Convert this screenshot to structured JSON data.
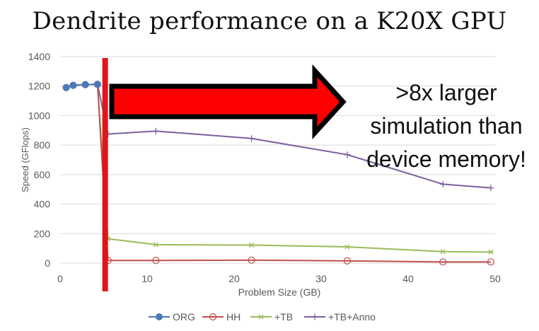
{
  "slide": {
    "title": "Dendrite performance on a K20X GPU",
    "annotation": [
      ">8x larger",
      "simulation than",
      "device memory!"
    ]
  },
  "colors": {
    "ORG": "#4a7ab8",
    "HH": "#c0504d",
    "TB": "#9bbb59",
    "TBAnno": "#7b5fa0",
    "marker_line": "#e0151a",
    "arrow_fill": "#ff0000",
    "arrow_outline": "#000000"
  },
  "chart_data": {
    "type": "line",
    "xlabel": "Problem Size (GB)",
    "ylabel": "Speed (GFlops)",
    "xlim": [
      0,
      50
    ],
    "ylim": [
      0,
      1400
    ],
    "xticks": [
      0,
      10,
      20,
      30,
      40,
      50
    ],
    "yticks": [
      0,
      200,
      400,
      600,
      800,
      1000,
      1200,
      1400
    ],
    "grid": "horizontal",
    "legend_position": "bottom",
    "series": [
      {
        "name": "ORG",
        "marker": "filled-circle",
        "x": [
          0.7,
          1.5,
          2.9,
          4.3
        ],
        "y": [
          1190,
          1205,
          1210,
          1212
        ]
      },
      {
        "name": "HH",
        "marker": "open-circle",
        "x": [
          0.7,
          1.5,
          2.9,
          4.3,
          5.5,
          11,
          22,
          33,
          44,
          49.5
        ],
        "y": [
          1190,
          1205,
          1210,
          1212,
          18,
          18,
          20,
          15,
          8,
          8
        ]
      },
      {
        "name": "+TB",
        "marker": "star",
        "x": [
          0.7,
          1.5,
          2.9,
          4.3,
          5.5,
          11,
          22,
          33,
          44,
          49.5
        ],
        "y": [
          1190,
          1205,
          1210,
          1212,
          165,
          125,
          122,
          110,
          78,
          75
        ]
      },
      {
        "name": "+TB+Anno",
        "marker": "plus",
        "x": [
          0.7,
          1.5,
          2.9,
          4.3,
          5.5,
          11,
          22,
          33,
          44,
          49.5
        ],
        "y": [
          1190,
          1205,
          1210,
          1212,
          875,
          895,
          845,
          735,
          535,
          510
        ]
      }
    ],
    "device_memory_marker_x": 5.5
  }
}
